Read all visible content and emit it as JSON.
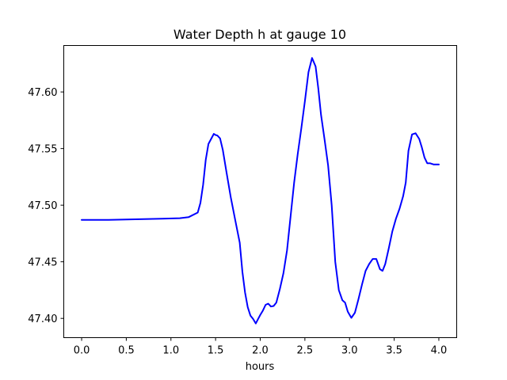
{
  "chart_data": {
    "type": "line",
    "title": "Water Depth h at gauge 10",
    "xlabel": "hours",
    "ylabel": "",
    "xlim": [
      -0.2,
      4.2
    ],
    "ylim": [
      47.383,
      47.641
    ],
    "grid": false,
    "x_ticks": [
      {
        "value": 0.0,
        "label": "0.0"
      },
      {
        "value": 0.5,
        "label": "0.5"
      },
      {
        "value": 1.0,
        "label": "1.0"
      },
      {
        "value": 1.5,
        "label": "1.5"
      },
      {
        "value": 2.0,
        "label": "2.0"
      },
      {
        "value": 2.5,
        "label": "2.5"
      },
      {
        "value": 3.0,
        "label": "3.0"
      },
      {
        "value": 3.5,
        "label": "3.5"
      },
      {
        "value": 4.0,
        "label": "4.0"
      }
    ],
    "y_ticks": [
      {
        "value": 47.4,
        "label": "47.40"
      },
      {
        "value": 47.45,
        "label": "47.45"
      },
      {
        "value": 47.5,
        "label": "47.50"
      },
      {
        "value": 47.55,
        "label": "47.55"
      },
      {
        "value": 47.6,
        "label": "47.60"
      }
    ],
    "series": [
      {
        "color": "#0000ff",
        "x": [
          0.0,
          0.3,
          0.6,
          0.9,
          1.1,
          1.2,
          1.3,
          1.33,
          1.36,
          1.39,
          1.42,
          1.45,
          1.48,
          1.5,
          1.52,
          1.55,
          1.58,
          1.62,
          1.67,
          1.72,
          1.77,
          1.8,
          1.83,
          1.86,
          1.89,
          1.92,
          1.95,
          1.98,
          2.0,
          2.03,
          2.06,
          2.09,
          2.12,
          2.15,
          2.18,
          2.22,
          2.26,
          2.3,
          2.34,
          2.38,
          2.42,
          2.46,
          2.5,
          2.54,
          2.58,
          2.62,
          2.65,
          2.68,
          2.72,
          2.76,
          2.8,
          2.84,
          2.88,
          2.92,
          2.95,
          2.98,
          3.02,
          3.06,
          3.1,
          3.14,
          3.18,
          3.22,
          3.26,
          3.3,
          3.34,
          3.37,
          3.4,
          3.44,
          3.48,
          3.52,
          3.56,
          3.6,
          3.63,
          3.66,
          3.7,
          3.74,
          3.78,
          3.81,
          3.84,
          3.87,
          3.9,
          3.94,
          3.97,
          4.0
        ],
        "y": [
          47.487,
          47.487,
          47.4875,
          47.488,
          47.4885,
          47.4895,
          47.4935,
          47.502,
          47.518,
          47.54,
          47.554,
          47.5585,
          47.563,
          47.562,
          47.5615,
          47.559,
          47.549,
          47.53,
          47.507,
          47.487,
          47.467,
          47.441,
          47.423,
          47.41,
          47.4025,
          47.3995,
          47.3955,
          47.4,
          47.403,
          47.407,
          47.412,
          47.413,
          47.4105,
          47.411,
          47.414,
          47.426,
          47.44,
          47.46,
          47.49,
          47.52,
          47.545,
          47.568,
          47.592,
          47.6175,
          47.63,
          47.6225,
          47.603,
          47.58,
          47.558,
          47.535,
          47.5,
          47.45,
          47.425,
          47.416,
          47.414,
          47.406,
          47.4005,
          47.405,
          47.417,
          47.43,
          47.442,
          47.448,
          47.4525,
          47.4525,
          47.4435,
          47.442,
          47.448,
          47.462,
          47.477,
          47.488,
          47.497,
          47.508,
          47.52,
          47.548,
          47.5625,
          47.5635,
          47.5585,
          47.551,
          47.542,
          47.537,
          47.537,
          47.536,
          47.536,
          47.536
        ]
      }
    ]
  }
}
